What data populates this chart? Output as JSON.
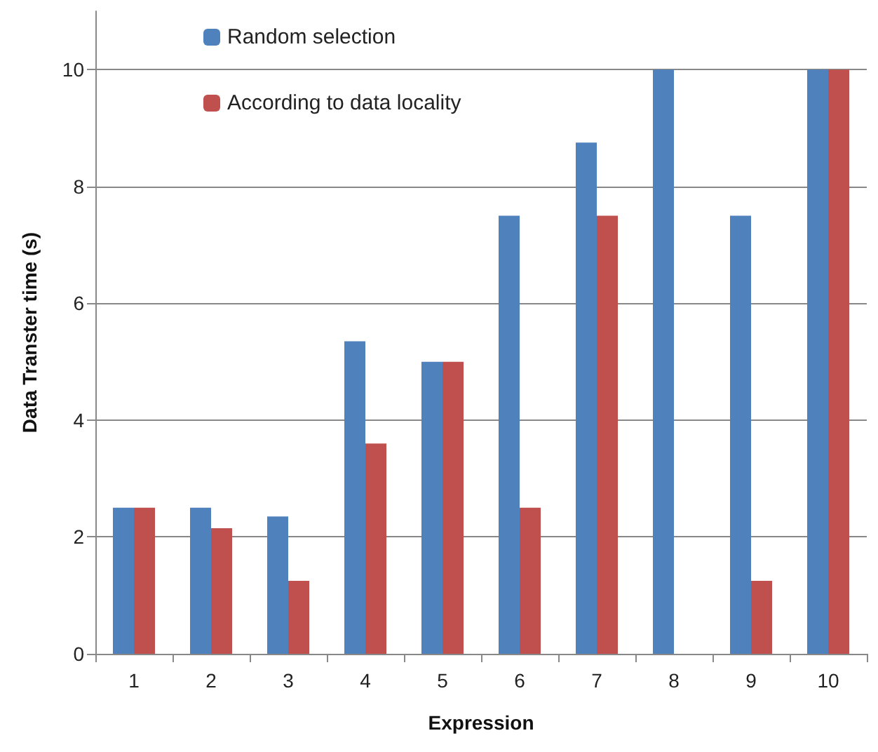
{
  "chart_data": {
    "type": "bar",
    "xlabel": "Expression",
    "ylabel": "Data Transter time (s)",
    "categories": [
      "1",
      "2",
      "3",
      "4",
      "5",
      "6",
      "7",
      "8",
      "9",
      "10"
    ],
    "series": [
      {
        "name": "Random selection",
        "color": "#4f81bd",
        "values": [
          2.5,
          2.5,
          2.35,
          5.35,
          5,
          7.5,
          8.75,
          10,
          7.5,
          10
        ]
      },
      {
        "name": "According to data locality",
        "color": "#c0504d",
        "values": [
          2.5,
          2.15,
          1.25,
          3.6,
          5,
          2.5,
          7.5,
          0,
          1.25,
          10
        ]
      }
    ],
    "ylim": [
      0,
      11
    ],
    "yticks": [
      0,
      2,
      4,
      6,
      8,
      10
    ],
    "grid": "y",
    "legend": "top left"
  }
}
